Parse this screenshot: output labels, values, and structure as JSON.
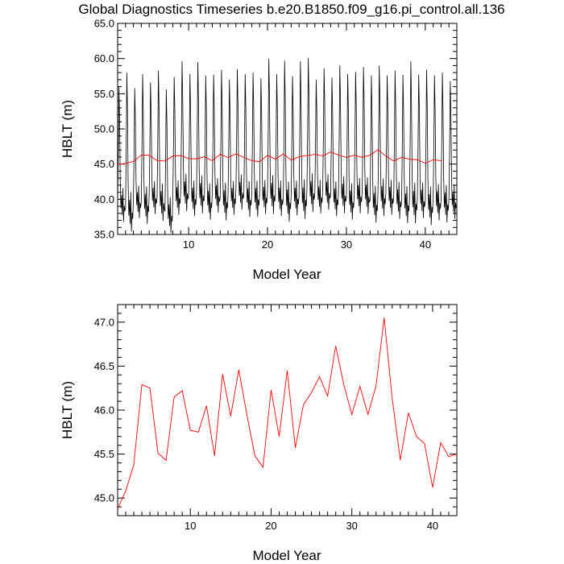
{
  "chart_data": [
    {
      "type": "line",
      "title": "Global Diagnostics Timeseries b.e20.B1850.f09_g16.pi_control.all.136",
      "xlabel": "Model Year",
      "ylabel": "HBLT (m)",
      "xlim": [
        1,
        44
      ],
      "ylim": [
        35.0,
        65.0
      ],
      "x_ticks": [
        10,
        20,
        30,
        40
      ],
      "y_ticks": [
        35.0,
        40.0,
        45.0,
        50.0,
        55.0,
        60.0,
        65.0
      ],
      "y_tick_labels": [
        "35.0",
        "40.0",
        "45.0",
        "50.0",
        "55.0",
        "60.0",
        "65.0"
      ],
      "x_tick_labels": [
        "10",
        "20",
        "30",
        "40"
      ],
      "grid": false,
      "series": [
        {
          "color": "#000000",
          "monthly_years": 43,
          "monthly_peaks": [
            56.0,
            58.0,
            55.8,
            57.8,
            56.6,
            58.3,
            55.6,
            57.4,
            59.6,
            57.8,
            59.5,
            57.6,
            57.7,
            58.4,
            57.0,
            58.5,
            57.8,
            58.0,
            57.2,
            60.0,
            57.8,
            59.7,
            57.5,
            59.6,
            60.1,
            57.0,
            58.6,
            57.3,
            59.0,
            57.8,
            58.1,
            58.8,
            57.6,
            59.0,
            57.6,
            58.3,
            57.7,
            59.6,
            57.7,
            58.4,
            57.6,
            58.0,
            56.8
          ],
          "monthly_troughs": [
            36.8,
            35.4,
            37.3,
            36.5,
            37.9,
            36.9,
            35.2,
            37.8,
            38.3,
            37.6,
            38.0,
            37.1,
            38.1,
            37.0,
            37.8,
            38.5,
            37.5,
            37.5,
            37.9,
            37.9,
            37.6,
            36.8,
            37.7,
            37.2,
            38.2,
            38.0,
            38.5,
            37.6,
            38.0,
            37.1,
            38.0,
            37.9,
            36.7,
            37.6,
            37.8,
            37.2,
            36.6,
            36.6,
            37.3,
            36.3,
            37.0,
            36.7,
            37.2
          ]
        },
        {
          "color": "#ff0000",
          "x": [
            1,
            2,
            3,
            4,
            5,
            6,
            7,
            8,
            9,
            10,
            11,
            12,
            13,
            14,
            15,
            16,
            17,
            18,
            19,
            20,
            21,
            22,
            23,
            24,
            25,
            26,
            27,
            28,
            29,
            30,
            31,
            32,
            33,
            34,
            35,
            36,
            37,
            38,
            39,
            40,
            41,
            42
          ],
          "y": [
            44.95,
            45.08,
            45.38,
            46.29,
            46.25,
            45.51,
            45.43,
            46.15,
            46.22,
            45.77,
            45.75,
            46.05,
            45.48,
            46.41,
            45.93,
            46.46,
            45.95,
            45.48,
            45.35,
            46.23,
            45.7,
            46.45,
            45.57,
            46.06,
            46.2,
            46.38,
            46.16,
            46.73,
            46.29,
            45.95,
            46.27,
            45.95,
            46.28,
            47.05,
            46.13,
            45.43,
            45.97,
            45.7,
            45.62,
            45.12,
            45.63,
            45.47
          ]
        }
      ]
    },
    {
      "type": "line",
      "xlabel": "Model Year",
      "ylabel": "HBLT (m)",
      "xlim": [
        1,
        43
      ],
      "ylim": [
        44.8,
        47.2
      ],
      "x_ticks": [
        10,
        20,
        30,
        40
      ],
      "y_ticks": [
        45.0,
        45.5,
        46.0,
        46.5,
        47.0
      ],
      "y_tick_labels": [
        "45.0",
        "45.5",
        "46.0",
        "46.5",
        "47.0"
      ],
      "x_tick_labels": [
        "10",
        "20",
        "30",
        "40"
      ],
      "grid": false,
      "series": [
        {
          "color": "#ff0000",
          "x": [
            1,
            2,
            3,
            4,
            5,
            6,
            7,
            8,
            9,
            10,
            11,
            12,
            13,
            14,
            15,
            16,
            17,
            18,
            19,
            20,
            21,
            22,
            23,
            24,
            25,
            26,
            27,
            28,
            29,
            30,
            31,
            32,
            33,
            34,
            35,
            36,
            37,
            38,
            39,
            40,
            41,
            42,
            43
          ],
          "y": [
            44.88,
            45.08,
            45.38,
            46.29,
            46.25,
            45.51,
            45.43,
            46.15,
            46.22,
            45.77,
            45.75,
            46.05,
            45.48,
            46.41,
            45.93,
            46.46,
            45.95,
            45.48,
            45.35,
            46.23,
            45.7,
            46.45,
            45.57,
            46.06,
            46.2,
            46.38,
            46.16,
            46.73,
            46.29,
            45.95,
            46.27,
            45.95,
            46.28,
            47.05,
            46.13,
            45.43,
            45.97,
            45.7,
            45.62,
            45.12,
            45.63,
            45.47,
            45.5
          ]
        }
      ]
    }
  ]
}
